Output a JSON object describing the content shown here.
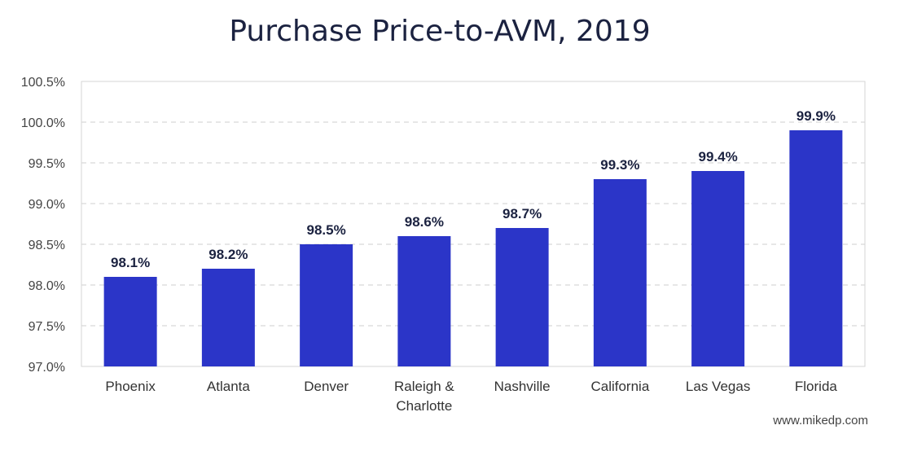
{
  "chart_data": {
    "type": "bar",
    "title": "Purchase Price-to-AVM, 2019",
    "categories": [
      "Phoenix",
      "Atlanta",
      "Denver",
      "Raleigh & Charlotte",
      "Nashville",
      "California",
      "Las Vegas",
      "Florida"
    ],
    "values": [
      98.1,
      98.2,
      98.5,
      98.6,
      98.7,
      99.3,
      99.4,
      99.9
    ],
    "data_labels": [
      "98.1%",
      "98.2%",
      "98.5%",
      "98.6%",
      "98.7%",
      "99.3%",
      "99.4%",
      "99.9%"
    ],
    "ylim": [
      97.0,
      100.5
    ],
    "yticks": [
      97.0,
      97.5,
      98.0,
      98.5,
      99.0,
      99.5,
      100.0,
      100.5
    ],
    "ytick_labels": [
      "97.0%",
      "97.5%",
      "98.0%",
      "98.5%",
      "99.0%",
      "99.5%",
      "100.0%",
      "100.5%"
    ],
    "xlabel": "",
    "ylabel": "",
    "grid": true,
    "bar_color": "#2b35c8"
  },
  "footer": {
    "watermark": "www.mikedp.com"
  }
}
